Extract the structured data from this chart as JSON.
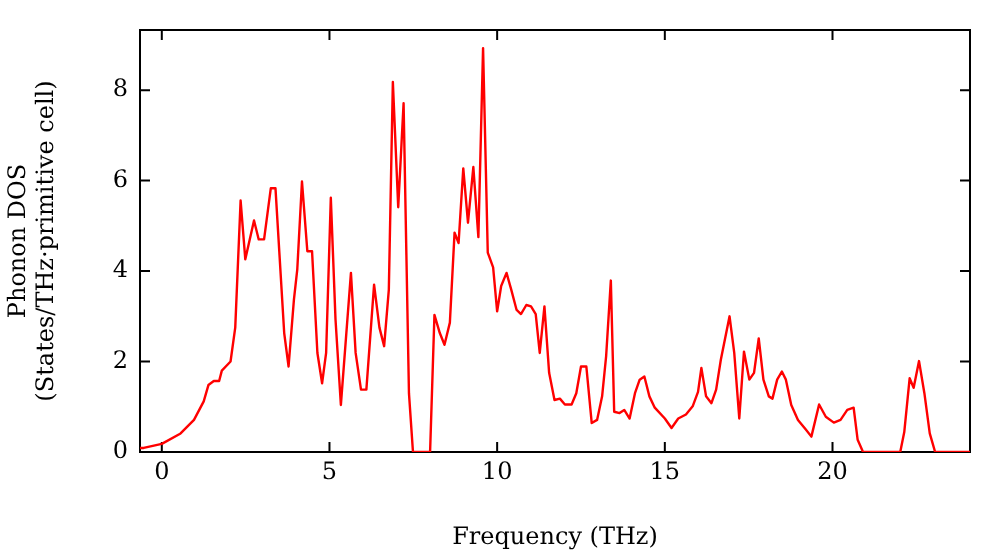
{
  "chart_data": {
    "type": "line",
    "xlabel": "Frequency (THz)",
    "ylabel": "Phonon DOS\n(States/THz·primitive cell)",
    "xlim": [
      -0.65,
      24.1
    ],
    "ylim": [
      0,
      9.33
    ],
    "xticks": [
      0,
      5,
      10,
      15,
      20
    ],
    "yticks": [
      0,
      2,
      4,
      6,
      8
    ],
    "grid": false,
    "legend": false,
    "marker": "none",
    "line_style": "solid",
    "series": [
      {
        "color": "#ff0000",
        "x": [
          -0.65,
          -0.54,
          0,
          0.56,
          0.96,
          1.25,
          1.39,
          1.55,
          1.71,
          1.79,
          2.05,
          2.19,
          2.35,
          2.49,
          2.75,
          2.89,
          3.05,
          3.25,
          3.39,
          3.65,
          3.78,
          3.94,
          4.04,
          4.18,
          4.34,
          4.48,
          4.64,
          4.78,
          4.9,
          5.04,
          5.18,
          5.34,
          5.64,
          5.78,
          5.94,
          6.1,
          6.33,
          6.49,
          6.63,
          6.77,
          6.89,
          7.05,
          7.21,
          7.37,
          7.49,
          8.0,
          8.13,
          8.29,
          8.43,
          8.59,
          8.73,
          8.85,
          8.99,
          9.13,
          9.29,
          9.44,
          9.58,
          9.72,
          9.88,
          10,
          10.12,
          10.28,
          10.42,
          10.58,
          10.71,
          10.87,
          11.01,
          11.15,
          11.27,
          11.41,
          11.55,
          11.71,
          11.87,
          12.02,
          12.22,
          12.36,
          12.5,
          12.66,
          12.82,
          12.98,
          13.13,
          13.25,
          13.39,
          13.49,
          13.65,
          13.79,
          13.95,
          14.11,
          14.25,
          14.39,
          14.54,
          14.7,
          15,
          15.2,
          15.4,
          15.63,
          15.83,
          15.99,
          16.09,
          16.23,
          16.39,
          16.53,
          16.67,
          16.93,
          17.07,
          17.22,
          17.36,
          17.52,
          17.66,
          17.8,
          17.94,
          18.1,
          18.21,
          18.35,
          18.49,
          18.61,
          18.77,
          18.97,
          19.21,
          19.37,
          19.6,
          19.8,
          20.04,
          20.24,
          20.44,
          20.63,
          20.75,
          20.91,
          22.02,
          22.14,
          22.3,
          22.42,
          22.58,
          22.74,
          22.9,
          23.06,
          24.1
        ],
        "values": [
          0.09,
          0.09,
          0.18,
          0.41,
          0.71,
          1.12,
          1.48,
          1.57,
          1.57,
          1.8,
          2.0,
          2.75,
          5.56,
          4.26,
          5.12,
          4.7,
          4.7,
          5.83,
          5.83,
          2.63,
          1.89,
          3.37,
          4.04,
          5.98,
          4.44,
          4.44,
          2.19,
          1.52,
          2.19,
          5.62,
          2.93,
          1.04,
          3.96,
          2.19,
          1.38,
          1.38,
          3.7,
          2.75,
          2.34,
          3.59,
          8.18,
          5.41,
          7.71,
          1.3,
          0,
          0,
          3.03,
          2.63,
          2.37,
          2.86,
          4.85,
          4.62,
          6.27,
          5.07,
          6.3,
          4.75,
          8.93,
          4.41,
          4.08,
          3.11,
          3.67,
          3.96,
          3.59,
          3.14,
          3.05,
          3.25,
          3.22,
          3.05,
          2.19,
          3.22,
          1.75,
          1.15,
          1.18,
          1.05,
          1.05,
          1.3,
          1.89,
          1.89,
          0.64,
          0.71,
          1.23,
          2.12,
          3.79,
          0.89,
          0.86,
          0.93,
          0.74,
          1.3,
          1.6,
          1.67,
          1.23,
          0.98,
          0.74,
          0.53,
          0.74,
          0.83,
          1.01,
          1.33,
          1.86,
          1.23,
          1.08,
          1.38,
          2.04,
          3.0,
          2.19,
          0.74,
          2.22,
          1.6,
          1.75,
          2.51,
          1.6,
          1.23,
          1.18,
          1.6,
          1.78,
          1.6,
          1.04,
          0.71,
          0.49,
          0.34,
          1.05,
          0.78,
          0.65,
          0.71,
          0.93,
          0.98,
          0.27,
          0,
          0,
          0.44,
          1.63,
          1.42,
          2.01,
          1.3,
          0.41,
          0,
          0
        ]
      }
    ]
  }
}
